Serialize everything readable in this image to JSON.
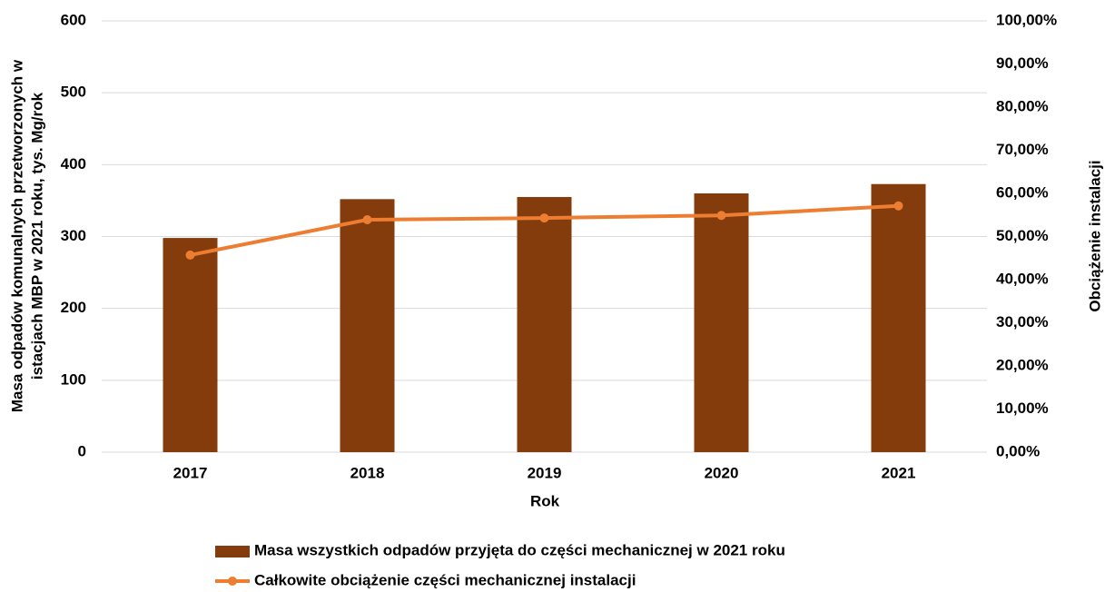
{
  "chart_data": {
    "type": "bar_line",
    "y_label": [
      "Masa odpadów komunalnych  przetworzonych w",
      "istacjach MBP w 2021 roku, tys. Mg/rok"
    ],
    "y2_label": "Obciążenie instalacji",
    "x_label": "Rok",
    "categories": [
      "2017",
      "2018",
      "2019",
      "2020",
      "2021"
    ],
    "series": [
      {
        "name": "Masa wszystkich odpadów przyjęta do części mechanicznej w 2021 roku",
        "type": "bar",
        "color": "#843c0c",
        "values": [
          298,
          352,
          355,
          360,
          373
        ]
      },
      {
        "name": "Całkowite obciążenie części mechanicznej instalacji",
        "type": "line",
        "color": "#ed7d31",
        "axis": "y2",
        "values": [
          45.7,
          53.9,
          54.3,
          54.9,
          57.1
        ]
      }
    ],
    "ylim": [
      0,
      600
    ],
    "yticks": [
      0,
      100,
      200,
      300,
      400,
      500,
      600
    ],
    "y2lim": [
      0,
      100
    ],
    "y2ticks": [
      {
        "value": 0,
        "label": "0,00%"
      },
      {
        "value": 10,
        "label": "10,00%"
      },
      {
        "value": 20,
        "label": "20,00%"
      },
      {
        "value": 30,
        "label": "30,00%"
      },
      {
        "value": 40,
        "label": "40,00%"
      },
      {
        "value": 50,
        "label": "50,00%"
      },
      {
        "value": 60,
        "label": "60,00%"
      },
      {
        "value": 70,
        "label": "70,00%"
      },
      {
        "value": 80,
        "label": "80,00%"
      },
      {
        "value": 90,
        "label": "90,00%"
      },
      {
        "value": 100,
        "label": "100,00%"
      }
    ],
    "grid": true,
    "legend": "bottom"
  }
}
